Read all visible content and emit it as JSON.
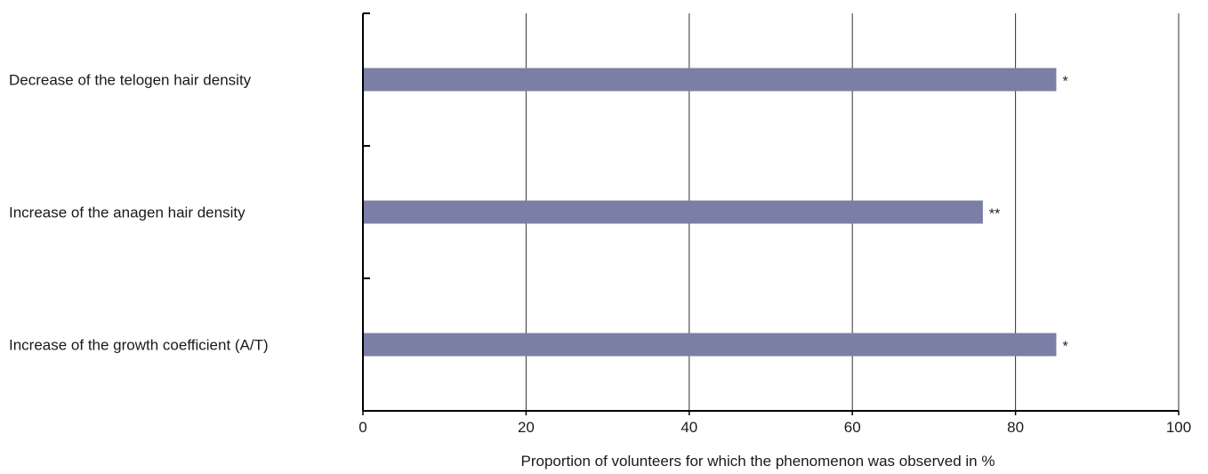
{
  "chart_data": {
    "type": "bar",
    "orientation": "horizontal",
    "title": "",
    "xlabel": "Proportion of volunteers for which the phenomenon was observed in %",
    "ylabel": "",
    "xlim": [
      0,
      100
    ],
    "x_ticks": [
      "0",
      "20",
      "40",
      "60",
      "80",
      "100"
    ],
    "grid": "vertical",
    "legend": "none",
    "categories": [
      "Decrease of the telogen hair density",
      "Increase of the anagen hair density",
      "Increase of the growth coefficient (A/T)"
    ],
    "values": [
      85,
      76,
      85
    ],
    "annotations": [
      "*",
      "**",
      "*"
    ],
    "bar_color": "#7b7fa6"
  }
}
